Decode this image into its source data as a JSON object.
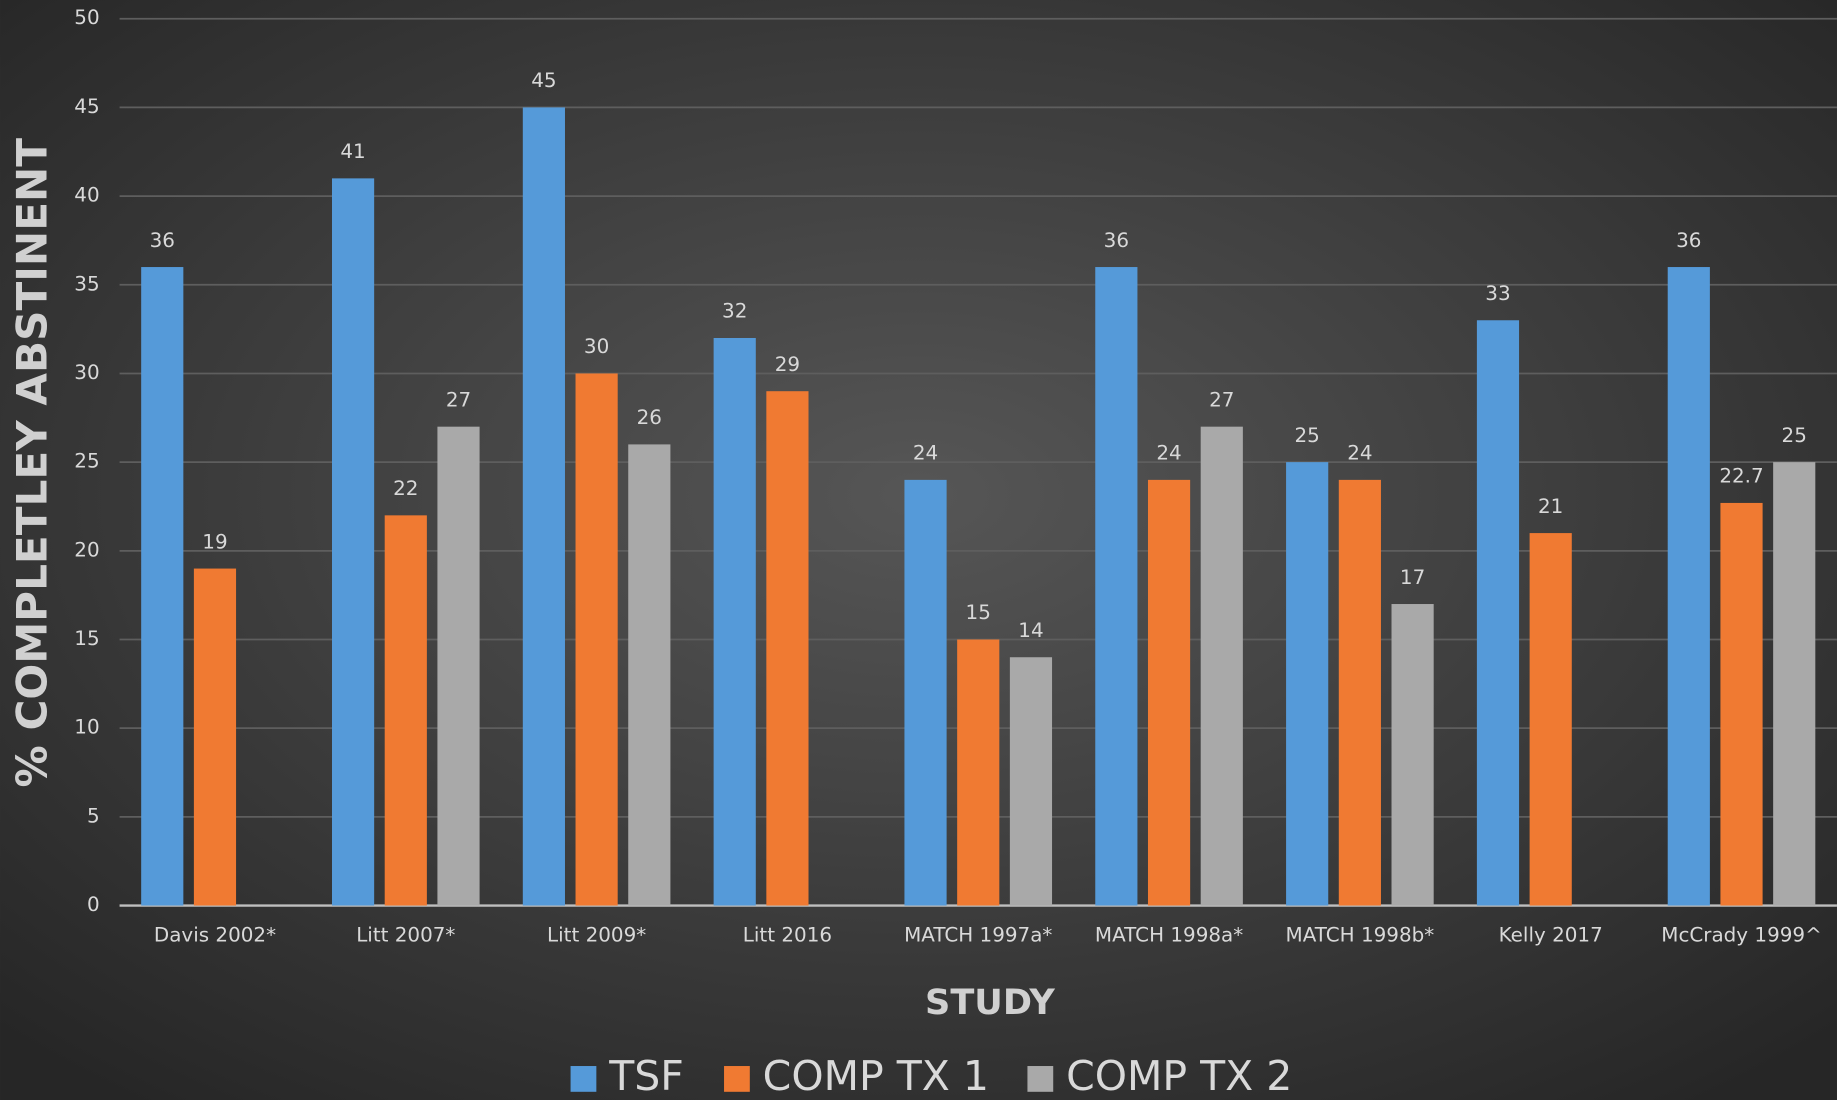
{
  "chart_data": {
    "type": "bar",
    "y_label": "% COMPLETLEY ABSTINENT",
    "x_label": "STUDY",
    "categories": [
      "Davis 2002*",
      "Litt 2007*",
      "Litt 2009*",
      "Litt 2016",
      "MATCH 1997a*",
      "MATCH 1998a*",
      "MATCH 1998b*",
      "Kelly 2017",
      "McCrady 1999^"
    ],
    "series": [
      {
        "name": "TSF",
        "color": "#559ad9",
        "values": [
          36,
          41,
          45,
          32,
          24,
          36,
          25,
          33,
          36
        ]
      },
      {
        "name": "COMP TX 1",
        "color": "#f07a32",
        "values": [
          19,
          22,
          30,
          29,
          15,
          24,
          24,
          21,
          22.7
        ]
      },
      {
        "name": "COMP TX 2",
        "color": "#a9a9a9",
        "values": [
          null,
          27,
          26,
          null,
          14,
          27,
          17,
          null,
          25
        ]
      }
    ],
    "ylim": [
      0,
      50
    ],
    "yticks": [
      0,
      5,
      10,
      15,
      20,
      25,
      30,
      35,
      40,
      45,
      50
    ],
    "grid": true,
    "legend": "bottom"
  }
}
